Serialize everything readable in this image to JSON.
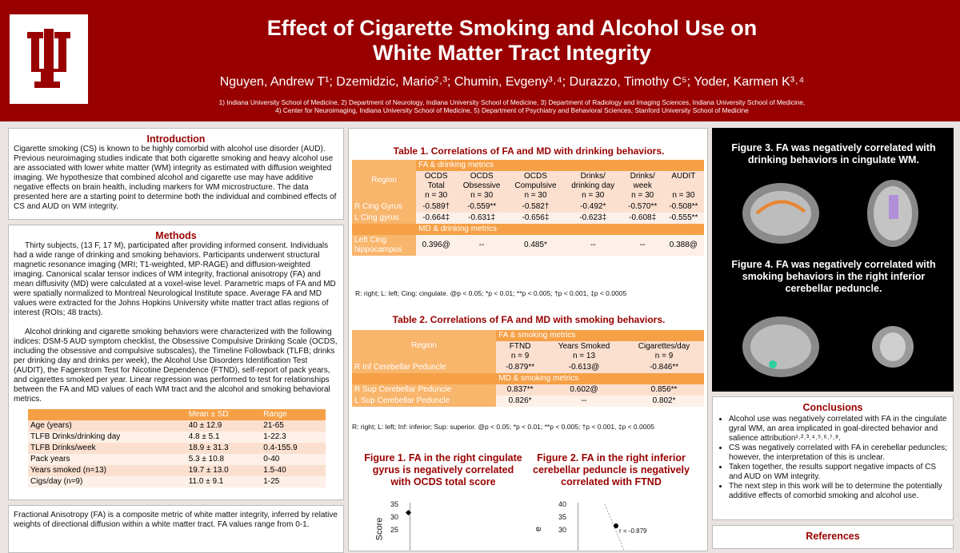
{
  "header": {
    "title_lines": [
      "Effect of Cigarette Smoking and Alcohol Use on",
      "White Matter Tract Integrity"
    ],
    "authors": "Nguyen, Andrew T¹; Dzemidzic, Mario²˒³; Chumin, Evgeny³˒⁴; Durazzo, Timothy C⁵; Yoder, Karmen K³˒⁴",
    "affiliations": [
      "1) Indiana University School of Medicine, 2) Department of Neurology, Indiana University School of Medicine, 3) Department of Radiology and Imaging Sciences, Indiana University School of Medicine,",
      "4) Center for Neuroimaging, Indiana University School of Medicine, 5) Department of Psychiatry and Behavioral Sciences, Stanford University School of Medicine"
    ]
  },
  "intro": {
    "heading": "Introduction",
    "text": "Cigarette smoking (CS) is known to be highly comorbid with alcohol use disorder (AUD). Previous neuroimaging studies indicate that both cigarette smoking and heavy alcohol use are associated with lower white matter (WM) integrity as estimated with diffusion weighted imaging.  We hypothesize that combined alcohol and cigarette use may have additive negative effects on brain health, including markers for WM microstructure.  The data presented here are a starting point to determine both the individual and combined effects of CS and AUD on WM integrity."
  },
  "methods": {
    "heading": "Methods",
    "paragraphs": [
      "Thirty subjects, (13 F, 17 M), participated after providing informed consent. Individuals had a wide range of drinking and smoking behaviors.  Participants underwent structural magnetic resonance imaging (MRI; T1-weighted, MP-RAGE) and diffusion-weighted imaging.  Canonical scalar tensor indices of WM integrity, fractional anisotropy (FA) and mean diffusivity (MD) were calculated at a voxel-wise level. Parametric maps of FA and MD were spatially normalized to Montreal Neurological Institute space.  Average FA and MD values were extracted for the Johns Hopkins University white matter tract atlas regions of interest (ROIs; 48 tracts).",
      "Alcohol drinking and cigarette smoking behaviors were characterized with the following indices:  DSM-5 AUD symptom checklist, the Obsessive Compulsive Drinking Scale (OCDS, including the obsessive and compulsive subscales), the Timeline Followback (TLFB; drinks per drinking day and drinks per week), the Alcohol Use Disorders Identification Test (AUDIT), the Fagerstrom Test for Nicotine Dependence (FTND), self-report of pack years, and cigarettes smoked per year. Linear regression was performed to test for relationships between the FA and MD values of each WM tract and the alcohol and smoking behavioral metrics."
    ],
    "table": {
      "columns": [
        "Mean ± SD",
        "Range"
      ],
      "rows": [
        [
          "Age (years)",
          "40 ± 12.9",
          "21-65"
        ],
        [
          "TLFB Drinks/drinking day",
          "4.8 ± 5.1",
          "1-22.3"
        ],
        [
          "TLFB Drinks/week",
          "18.9 ± 31.3",
          "0.4-155.9"
        ],
        [
          "Pack years",
          "5.3 ± 10.8",
          "0-40"
        ],
        [
          "Years smoked (n=13)",
          "19.7 ± 13.0",
          "1.5-40"
        ],
        [
          "Cigs/day (n=9)",
          "11.0 ± 9.1",
          "1-25"
        ]
      ]
    }
  },
  "fa_box": {
    "text": "Fractional Anisotropy (FA) is a composite metric of white matter integrity, inferred by relative weights of directional diffusion within a white matter tract.  FA values range from 0-1."
  },
  "table1": {
    "title": "Table 1.  Correlations of FA and MD with drinking behaviors.",
    "region": "Region",
    "group": "FA & drinking metrics",
    "columns": [
      "OCDS\nTotal\nn = 30",
      "OCDS\nObsessive\nn = 30",
      "OCDS\nCompulsive\nn = 30",
      "Drinks/\ndrinking day\nn = 30",
      "Drinks/\nweek\nn = 30",
      "AUDIT\n\nn = 30"
    ],
    "rows": [
      {
        "region": "R Cing Gyrus",
        "cells": [
          "-0.589†",
          "-0.559**",
          "-0.582†",
          "-0.492*",
          "-0.570**",
          "-0.508**"
        ]
      },
      {
        "region": "L Cing gyrus",
        "cells": [
          "-0.664‡",
          "-0.631‡",
          "-0.656‡",
          "-0.623‡",
          "-0.608‡",
          "-0.555**"
        ]
      },
      {
        "section": "MD & drinking metrics"
      },
      {
        "region": "Left Cing\nhippocampus",
        "cells": [
          "0.396@",
          "--",
          "0.485*",
          "--",
          "--",
          "0.388@"
        ]
      }
    ],
    "note": "R: right; L: left; Cing: cingulate. @p < 0.05; *p < 0.01; **p < 0.005; †p < 0.001, ‡p < 0.0005"
  },
  "table2": {
    "title": "Table 2.  Correlations of FA and MD with smoking behaviors.",
    "region": "Region",
    "group": "FA & smoking metrics",
    "columns": [
      "FTND\nn = 9",
      "Years Smoked\nn = 13",
      "Cigarettes/day\nn = 9"
    ],
    "rows": [
      {
        "region": "R Inf Cerebellar Peduncle",
        "cells": [
          "-0.879**",
          "-0.613@",
          "-0.846**"
        ]
      },
      {
        "section": "MD & smoking metrics"
      },
      {
        "region": "R Sup Cerebellar Peduncle",
        "cells": [
          "0.837**",
          "0.602@",
          "0.856**"
        ]
      },
      {
        "region": "L Sup Cerebellar Peduncle",
        "cells": [
          "0.826*",
          "--",
          "0.802*"
        ]
      }
    ],
    "note": "R: right; L: left; Inf: inferior; Sup: superior.  @p < 0.05; *p < 0.01; **p < 0.005; †p < 0.001, ‡p < 0.0005"
  },
  "figures": [
    {
      "title": "Figure 1. FA in the right cingulate gyrus is negatively correlated with OCDS total score",
      "ticks": [
        "35",
        "30",
        "25"
      ],
      "axis": "Score"
    },
    {
      "title": "Figure 2. FA in the right inferior cerebellar peduncle is negatively correlated with FTND",
      "ticks": [
        "40",
        "35",
        "30"
      ],
      "axis": "e",
      "annotation": "r = -0.879"
    }
  ],
  "fig3": "Figure 3.  FA was negatively correlated with drinking behaviors in cingulate WM.",
  "fig4": "Figure 4.  FA was negatively correlated with smoking behaviors in the right inferior cerebellar peduncle.",
  "conclusions": {
    "heading": "Conclusions",
    "bullets": [
      "Alcohol use was negatively correlated with FA in the cingulate gyral WM, an area implicated in goal-directed behavior and salience attribution¹˒²˒³˒⁴˒⁵˒⁶˒⁷˒⁸.",
      "CS was negatively correlated with FA in cerebellar peduncles; however, the interpretation of this is unclear.",
      "Taken together, the results support negative impacts of CS and AUD on WM integrity.",
      "The next step in this work will be to determine the potentially additive effects of comorbid smoking and alcohol use."
    ]
  },
  "references": {
    "heading": "References"
  }
}
